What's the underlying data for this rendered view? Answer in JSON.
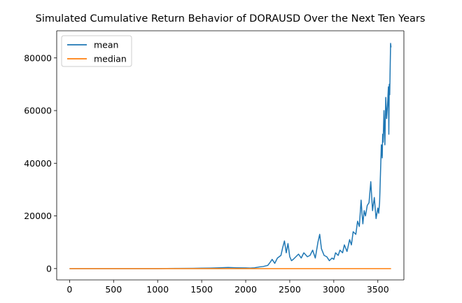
{
  "chart_data": {
    "type": "line",
    "title": "Simulated Cumulative Return Behavior of DORAUSD Over the Next Ten Years",
    "xlabel": "",
    "ylabel": "",
    "xlim": [
      -146,
      3796
    ],
    "ylim": [
      -4300,
      90300
    ],
    "xticks": [
      0,
      500,
      1000,
      1500,
      2000,
      2500,
      3000,
      3500
    ],
    "yticks": [
      0,
      20000,
      40000,
      60000,
      80000
    ],
    "ytick_labels": [
      "0",
      "20000",
      "40000",
      "60000",
      "80000"
    ],
    "legend_position": "upper-left",
    "grid": false,
    "series": [
      {
        "name": "mean",
        "color": "#1f77b4",
        "x": [
          0,
          200,
          400,
          600,
          800,
          1000,
          1200,
          1400,
          1500,
          1600,
          1700,
          1800,
          1900,
          2000,
          2050,
          2100,
          2150,
          2200,
          2250,
          2280,
          2300,
          2330,
          2360,
          2400,
          2420,
          2440,
          2460,
          2480,
          2500,
          2520,
          2540,
          2570,
          2600,
          2630,
          2660,
          2700,
          2730,
          2760,
          2790,
          2820,
          2840,
          2860,
          2890,
          2920,
          2950,
          2980,
          3000,
          3020,
          3050,
          3070,
          3100,
          3120,
          3150,
          3180,
          3200,
          3220,
          3250,
          3270,
          3290,
          3310,
          3320,
          3330,
          3345,
          3360,
          3380,
          3400,
          3420,
          3440,
          3460,
          3480,
          3500,
          3510,
          3520,
          3530,
          3540,
          3550,
          3555,
          3560,
          3570,
          3580,
          3590,
          3600,
          3610,
          3620,
          3625,
          3630,
          3635,
          3640,
          3645,
          3650
        ],
        "values": [
          0,
          0,
          0,
          0,
          0,
          0,
          50,
          100,
          150,
          200,
          300,
          400,
          300,
          250,
          200,
          300,
          600,
          800,
          1200,
          2500,
          3500,
          2000,
          4000,
          5000,
          8000,
          10500,
          6000,
          9500,
          4500,
          3000,
          3500,
          4500,
          5500,
          4000,
          6000,
          4500,
          5000,
          7000,
          4000,
          10000,
          13000,
          7500,
          5000,
          4500,
          3000,
          4000,
          3500,
          6000,
          5000,
          7000,
          6000,
          9000,
          6500,
          11000,
          9000,
          14000,
          13000,
          18000,
          16000,
          26000,
          21000,
          17000,
          22000,
          20000,
          24000,
          25000,
          33000,
          22000,
          27000,
          19000,
          23000,
          21000,
          25000,
          36000,
          47000,
          42000,
          51000,
          48000,
          60000,
          47000,
          65000,
          57000,
          62000,
          69000,
          51000,
          70000,
          66000,
          76000,
          85500,
          84000
        ]
      },
      {
        "name": "median",
        "color": "#ff7f0e",
        "x": [
          0,
          500,
          1000,
          1500,
          2000,
          2500,
          3000,
          3500,
          3650
        ],
        "values": [
          0,
          0,
          0,
          0,
          0,
          0,
          0,
          0,
          0
        ]
      }
    ]
  }
}
